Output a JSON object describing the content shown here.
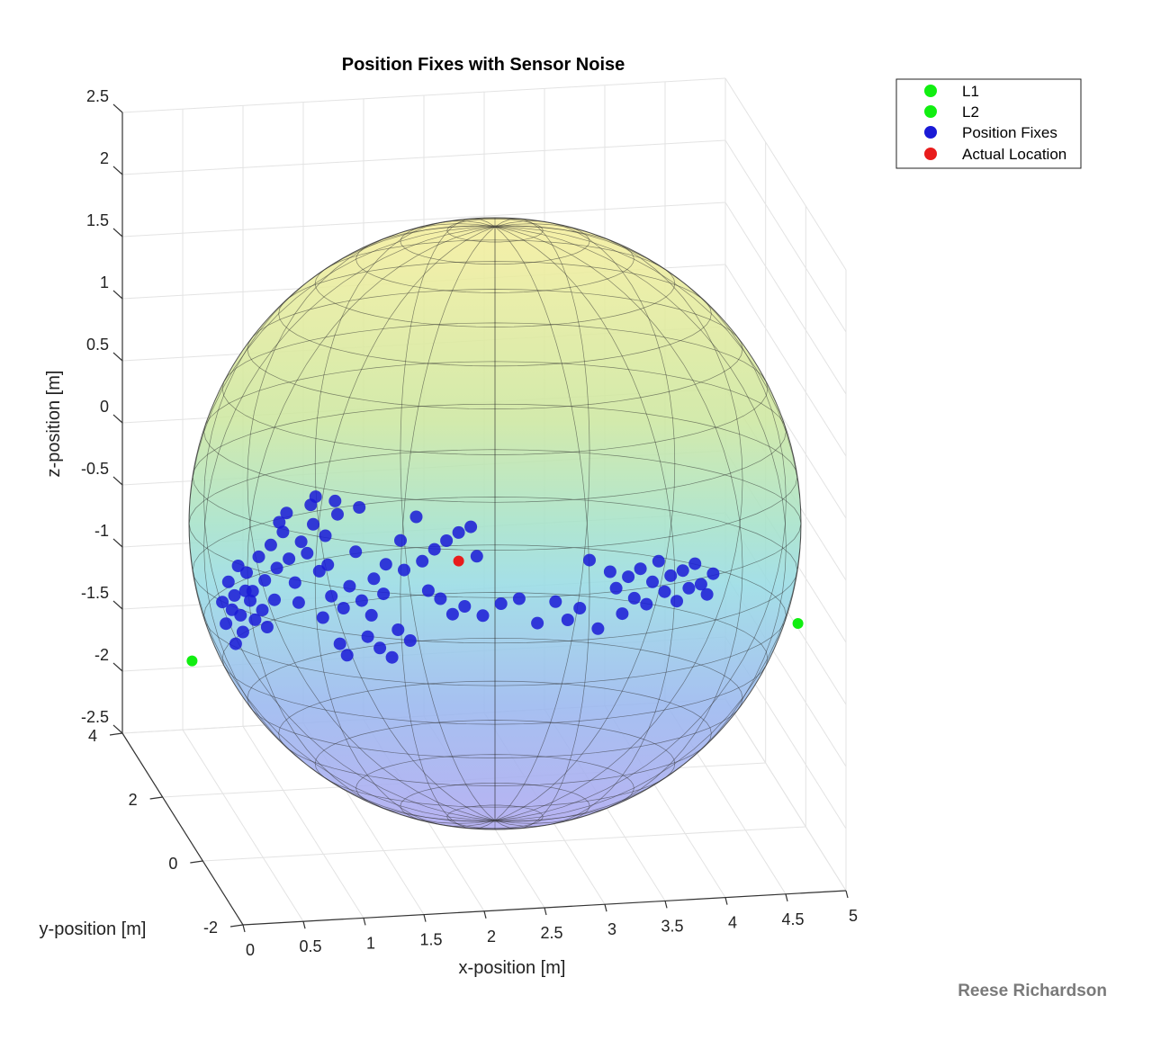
{
  "chart_data": {
    "type": "scatter",
    "title": "Position Fixes with Sensor Noise",
    "xlabel": "x-position [m]",
    "ylabel": "y-position [m]",
    "zlabel": "z-position [m]",
    "xlim": [
      0,
      5
    ],
    "ylim": [
      -2,
      4
    ],
    "zlim": [
      -2.5,
      2.5
    ],
    "x_ticks": [
      "0",
      "0.5",
      "1",
      "1.5",
      "2",
      "2.5",
      "3",
      "3.5",
      "4",
      "4.5",
      "5"
    ],
    "y_ticks": [
      "-2",
      "0",
      "2",
      "4"
    ],
    "z_ticks": [
      "-2.5",
      "-2",
      "-1.5",
      "-1",
      "-0.5",
      "0",
      "0.5",
      "1",
      "1.5",
      "2",
      "2.5"
    ],
    "grid": true,
    "legend_position": "top-right",
    "sphere": {
      "center": [
        2.5,
        0,
        0
      ],
      "radius": 2.5,
      "colormap": "parula",
      "translucent": true
    },
    "series": [
      {
        "name": "L1",
        "color": "#11ee11",
        "points": [
          [
            0,
            0,
            -1.1
          ]
        ]
      },
      {
        "name": "L2",
        "color": "#11ee11",
        "points": [
          [
            5,
            0,
            -0.8
          ]
        ]
      },
      {
        "name": "Position Fixes",
        "color": "#1a1ad6",
        "points": [
          [
            0.3,
            -0.4,
            -0.45
          ],
          [
            0.35,
            -0.6,
            -0.55
          ],
          [
            0.25,
            -0.2,
            -0.62
          ],
          [
            0.4,
            -0.8,
            -0.7
          ],
          [
            0.28,
            -0.5,
            -0.78
          ],
          [
            0.45,
            -0.3,
            -0.38
          ],
          [
            0.38,
            -0.9,
            -0.3
          ],
          [
            0.5,
            -0.5,
            -0.52
          ],
          [
            0.33,
            -0.7,
            -0.66
          ],
          [
            0.42,
            -0.2,
            -0.86
          ],
          [
            0.55,
            -0.6,
            -0.24
          ],
          [
            0.48,
            -0.4,
            -0.6
          ],
          [
            0.6,
            -0.8,
            -0.42
          ],
          [
            0.36,
            -0.3,
            -0.95
          ],
          [
            0.52,
            -0.7,
            -0.74
          ],
          [
            0.65,
            -0.5,
            -0.15
          ],
          [
            0.44,
            -0.9,
            -0.5
          ],
          [
            0.58,
            -0.3,
            -0.68
          ],
          [
            0.7,
            -0.6,
            -0.33
          ],
          [
            0.62,
            -0.2,
            -0.82
          ],
          [
            0.75,
            -0.4,
            -0.05
          ],
          [
            0.68,
            -0.7,
            -0.58
          ],
          [
            0.8,
            -0.5,
            -0.26
          ],
          [
            0.72,
            -0.9,
            0.05
          ],
          [
            0.85,
            -0.3,
            -0.46
          ],
          [
            0.9,
            -0.6,
            -0.12
          ],
          [
            0.78,
            -0.8,
            0.12
          ],
          [
            0.95,
            -0.4,
            -0.22
          ],
          [
            1.0,
            -0.6,
            0.02
          ],
          [
            0.88,
            -0.3,
            -0.62
          ],
          [
            1.05,
            -0.5,
            -0.36
          ],
          [
            0.98,
            -0.7,
            0.18
          ],
          [
            1.1,
            -0.4,
            -0.08
          ],
          [
            1.02,
            -0.8,
            0.25
          ],
          [
            1.15,
            -0.5,
            -0.56
          ],
          [
            1.08,
            -0.3,
            -0.74
          ],
          [
            1.2,
            -0.6,
            0.1
          ],
          [
            1.12,
            -0.7,
            -0.3
          ],
          [
            1.25,
            -0.4,
            -0.66
          ],
          [
            1.18,
            -0.9,
            0.22
          ],
          [
            1.3,
            -0.5,
            -0.48
          ],
          [
            1.22,
            -0.3,
            -0.95
          ],
          [
            1.35,
            -0.6,
            -0.2
          ],
          [
            1.28,
            -0.8,
            -1.02
          ],
          [
            1.4,
            -0.4,
            -0.6
          ],
          [
            1.45,
            -0.6,
            -0.88
          ],
          [
            1.38,
            -0.7,
            0.16
          ],
          [
            1.5,
            -0.5,
            -0.42
          ],
          [
            1.55,
            -0.4,
            -0.98
          ],
          [
            1.48,
            -0.8,
            -0.7
          ],
          [
            1.6,
            -0.6,
            -0.3
          ],
          [
            1.65,
            -0.5,
            -1.05
          ],
          [
            1.58,
            -0.3,
            -0.55
          ],
          [
            1.7,
            -0.7,
            -0.82
          ],
          [
            1.75,
            -0.5,
            -0.35
          ],
          [
            1.8,
            -0.4,
            -0.92
          ],
          [
            1.72,
            -0.8,
            -0.1
          ],
          [
            1.85,
            -0.6,
            0.08
          ],
          [
            1.9,
            -0.5,
            -0.28
          ],
          [
            1.95,
            -0.4,
            -0.52
          ],
          [
            2.0,
            -0.6,
            -0.18
          ],
          [
            2.05,
            -0.5,
            -0.58
          ],
          [
            2.1,
            -0.4,
            -0.12
          ],
          [
            2.15,
            -0.6,
            -0.7
          ],
          [
            2.2,
            -0.5,
            -0.05
          ],
          [
            2.25,
            -0.3,
            -0.65
          ],
          [
            2.3,
            -0.6,
            0.0
          ],
          [
            2.35,
            -0.5,
            -0.24
          ],
          [
            2.4,
            -0.4,
            -0.72
          ],
          [
            2.55,
            -0.5,
            -0.62
          ],
          [
            2.7,
            -0.5,
            -0.58
          ],
          [
            2.85,
            -0.4,
            -0.78
          ],
          [
            3.0,
            -0.6,
            -0.6
          ],
          [
            3.1,
            -0.5,
            -0.75
          ],
          [
            3.2,
            -0.4,
            -0.66
          ],
          [
            3.28,
            -0.3,
            -0.28
          ],
          [
            3.35,
            -0.5,
            -0.82
          ],
          [
            3.45,
            -0.6,
            -0.36
          ],
          [
            3.5,
            -0.4,
            -0.5
          ],
          [
            3.55,
            -0.5,
            -0.7
          ],
          [
            3.6,
            -0.6,
            -0.4
          ],
          [
            3.65,
            -0.4,
            -0.58
          ],
          [
            3.7,
            -0.5,
            -0.34
          ],
          [
            3.75,
            -0.6,
            -0.62
          ],
          [
            3.8,
            -0.4,
            -0.45
          ],
          [
            3.85,
            -0.5,
            -0.28
          ],
          [
            3.9,
            -0.6,
            -0.52
          ],
          [
            3.95,
            -0.4,
            -0.4
          ],
          [
            4.0,
            -0.5,
            -0.6
          ],
          [
            4.05,
            -0.6,
            -0.35
          ],
          [
            4.1,
            -0.4,
            -0.5
          ],
          [
            4.15,
            -0.5,
            -0.3
          ],
          [
            4.2,
            -0.6,
            -0.46
          ],
          [
            4.25,
            -0.4,
            -0.55
          ],
          [
            4.3,
            -0.5,
            -0.38
          ]
        ]
      },
      {
        "name": "Actual Location",
        "color": "#e81c1c",
        "points": [
          [
            2.2,
            0,
            -0.3
          ]
        ]
      }
    ]
  },
  "legend": {
    "items": [
      {
        "label": "L1",
        "color": "#11ee11"
      },
      {
        "label": "L2",
        "color": "#11ee11"
      },
      {
        "label": "Position Fixes",
        "color": "#1a1ad6"
      },
      {
        "label": "Actual Location",
        "color": "#e81c1c"
      }
    ]
  },
  "credit": "Reese Richardson"
}
